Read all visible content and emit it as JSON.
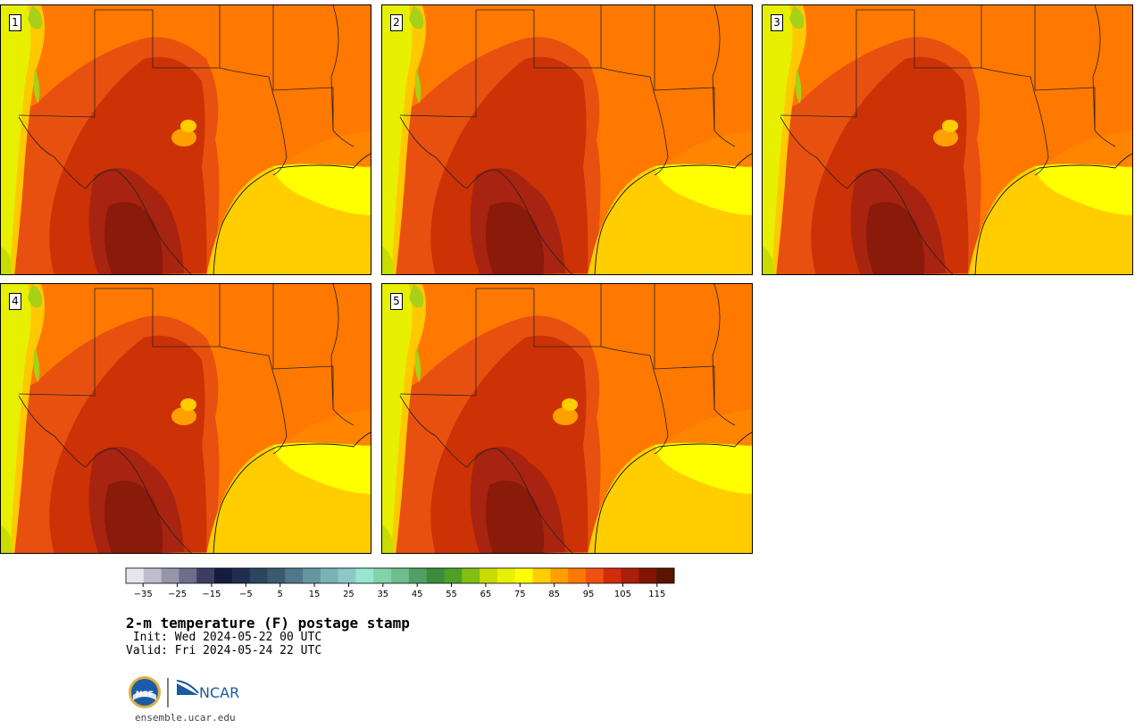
{
  "title": "2-m temperature (F) postage stamp",
  "init_text": " Init: Wed 2024-05-22 00 UTC",
  "valid_text": "Valid: Fri 2024-05-24 22 UTC",
  "members": [
    {
      "label": "1",
      "blob": true
    },
    {
      "label": "2",
      "blob": false
    },
    {
      "label": "3",
      "blob": true
    },
    {
      "label": "4",
      "blob": true
    },
    {
      "label": "5",
      "blob": true
    }
  ],
  "colorbar": {
    "colors": [
      "#e6e6ec",
      "#bebece",
      "#9696aa",
      "#6e6e8c",
      "#3c3c64",
      "#141e3c",
      "#1e2d50",
      "#2d465f",
      "#3c5a6e",
      "#50788c",
      "#6496a0",
      "#78b4b4",
      "#8cc8c8",
      "#96e6d2",
      "#82d2aa",
      "#6ebe8c",
      "#50a064",
      "#3c8c3c",
      "#50a028",
      "#82be14",
      "#c8dc00",
      "#e6f000",
      "#ffff00",
      "#ffcd00",
      "#ffa000",
      "#ff7800",
      "#f05014",
      "#d22d0a",
      "#aa1e0a",
      "#821400",
      "#5a1400"
    ],
    "ticks": [
      "−35",
      "−25",
      "−15",
      "−5",
      "5",
      "15",
      "25",
      "35",
      "45",
      "55",
      "65",
      "75",
      "85",
      "95",
      "105",
      "115"
    ],
    "min": -40,
    "max": 120
  },
  "logos": {
    "nsf": "NSF",
    "ncar": "NCAR"
  },
  "url": "ensemble.ucar.edu"
}
